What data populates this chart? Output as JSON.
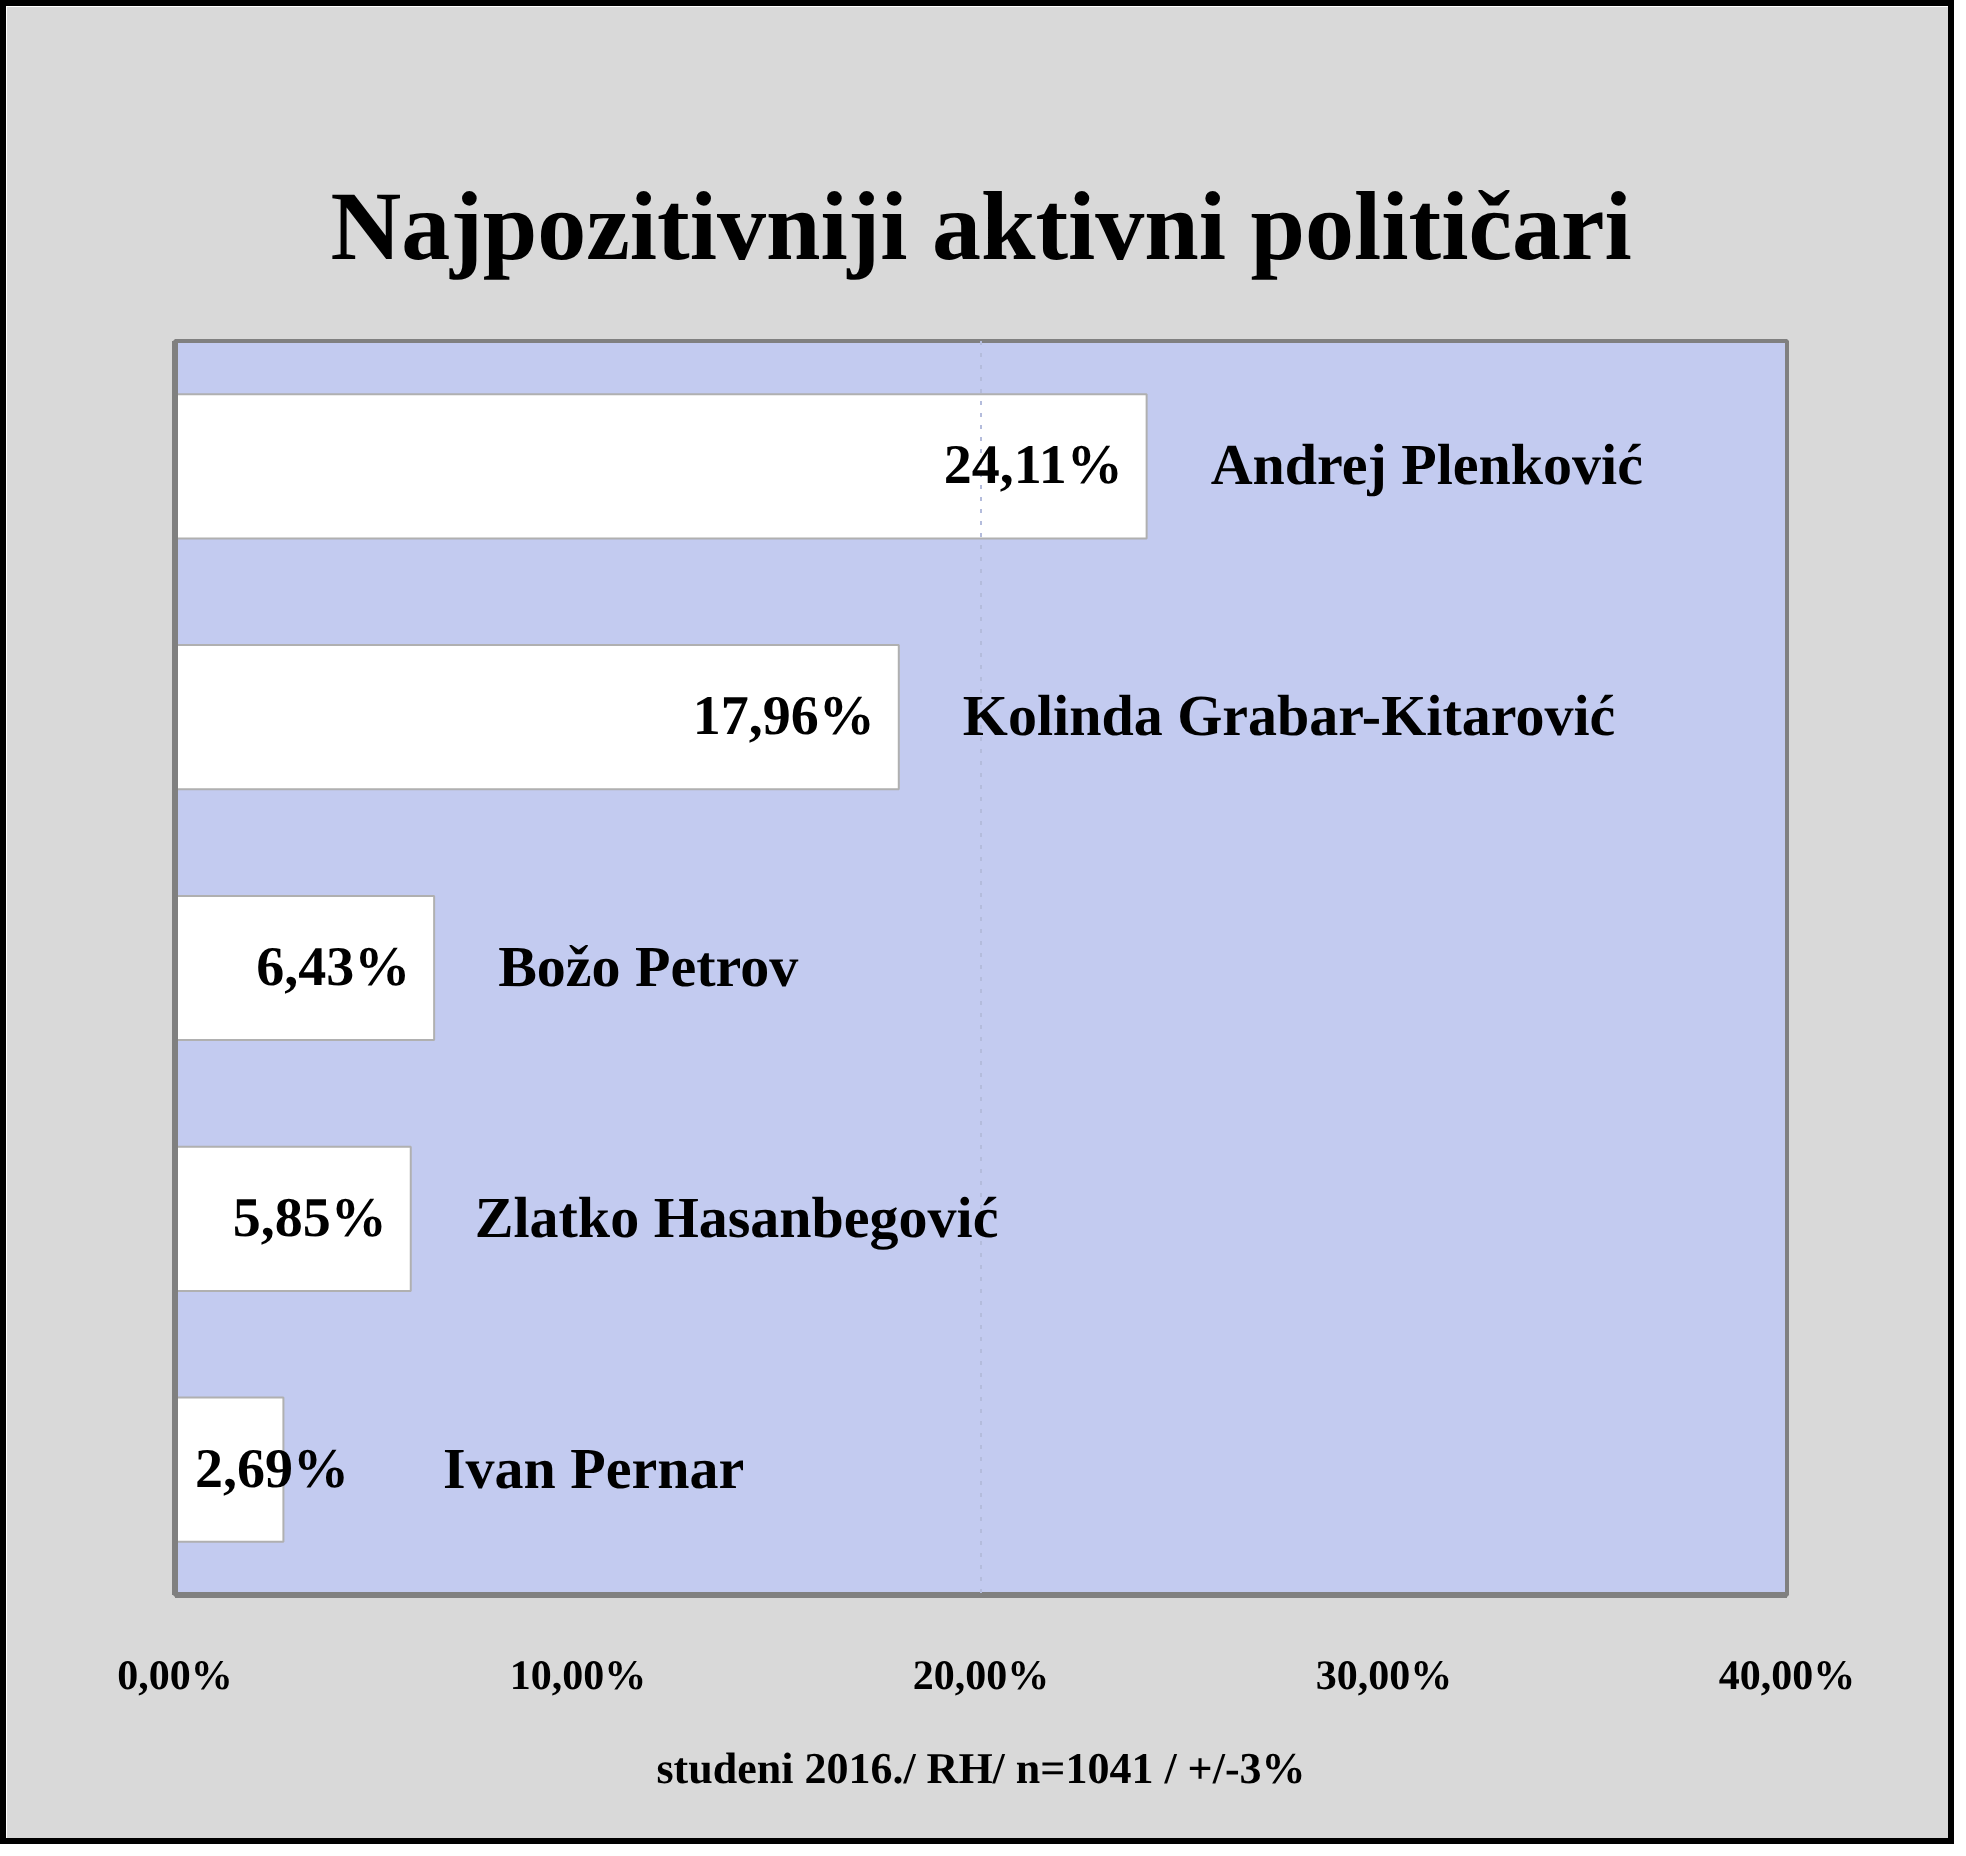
{
  "chart_data": {
    "type": "bar",
    "orientation": "horizontal",
    "title": "Najpozitivniji aktivni političari",
    "categories": [
      "Andrej Plenković",
      "Kolinda  Grabar-Kitarović",
      "Božo Petrov",
      "Zlatko Hasanbegović",
      "Ivan Pernar"
    ],
    "values": [
      24.11,
      17.96,
      6.43,
      5.85,
      2.69
    ],
    "color": "#ffffff",
    "value_labels": [
      "24,11%",
      "17,96%",
      "6,43%",
      "5,85%",
      "2,69%"
    ],
    "xlim": [
      0,
      40
    ],
    "xticks": [
      {
        "value": 0,
        "label": "0,00%"
      },
      {
        "value": 10,
        "label": "10,00%"
      },
      {
        "value": 20,
        "label": "20,00%"
      },
      {
        "value": 30,
        "label": "30,00%"
      },
      {
        "value": 40,
        "label": "40,00%"
      }
    ],
    "ref_lines": [
      {
        "axis": "x",
        "value": 20,
        "color": "#b4bcdc",
        "line_style": "dotted"
      }
    ],
    "tick_labels": "x",
    "grid": false,
    "annotations": [
      "studeni 2016./ RH/ n=1041 / +/-3%"
    ]
  }
}
